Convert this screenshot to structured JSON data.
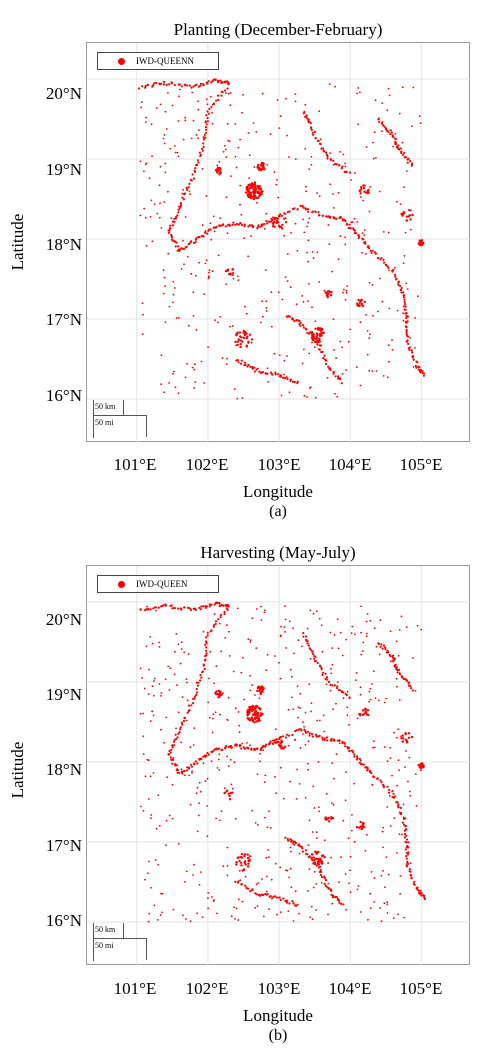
{
  "panels": [
    {
      "title": "Planting (December-February)",
      "legend": {
        "label": "IWD-QUEENN",
        "color": "#ff0000"
      },
      "y_ticks": [
        "20°N",
        "19°N",
        "18°N",
        "17°N",
        "16°N"
      ],
      "x_ticks": [
        "101°E",
        "102°E",
        "103°E",
        "104°E",
        "105°E"
      ],
      "ylabel": "Latitude",
      "xlabel": "Longitude",
      "scalebar": {
        "km": "50 km",
        "mi": "50 mi"
      },
      "caption": "(a)"
    },
    {
      "title": "Harvesting (May-July)",
      "legend": {
        "label": "IWD-QUEEN",
        "color": "#ff0000"
      },
      "y_ticks": [
        "20°N",
        "19°N",
        "18°N",
        "17°N",
        "16°N"
      ],
      "x_ticks": [
        "101°E",
        "102°E",
        "103°E",
        "104°E",
        "105°E"
      ],
      "ylabel": "Latitude",
      "xlabel": "Longitude",
      "scalebar": {
        "km": "50 km",
        "mi": "50 mi"
      },
      "caption": "(b)"
    }
  ],
  "map_extent": {
    "lon": [
      100.3,
      105.7
    ],
    "lat": [
      15.45,
      20.45
    ]
  },
  "point_color": "#ff0000",
  "grid": true
}
